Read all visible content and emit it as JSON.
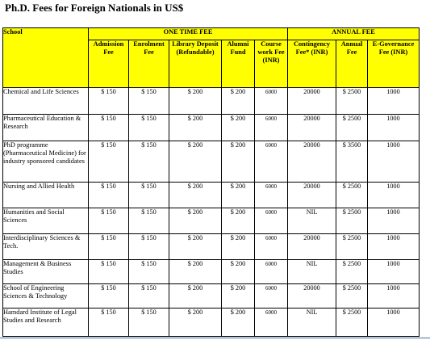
{
  "title": "Ph.D. Fees for Foreign Nationals in US$",
  "header": {
    "school": "School",
    "one_time_fee": "ONE TIME FEE",
    "annual_fee": "ANNUAL FEE",
    "columns": [
      "Admission Fee",
      "Enrolment Fee",
      "Library Deposit (Refundable)",
      "Alumni Fund",
      "Course work Fee (INR)",
      "Contingency Fee* (INR)",
      "Annual Fee",
      "E-Governance Fee (INR)"
    ]
  },
  "rows": [
    {
      "school": "Chemical and Life Sciences",
      "values": [
        "$ 150",
        "$ 150",
        "$ 200",
        "$ 200",
        "6000",
        "20000",
        "$ 2500",
        "1000"
      ]
    },
    {
      "school": "Pharmaceutical Education & Research",
      "values": [
        "$ 150",
        "$ 150",
        "$ 200",
        "$ 200",
        "6000",
        "20000",
        "$ 2500",
        "1000"
      ]
    },
    {
      "school": "PhD programme (Pharmaceutical Medicine) for industry sponsored candidates",
      "values": [
        "$ 150",
        "$ 150",
        "$ 200",
        "$ 200",
        "6000",
        "20000",
        "$ 3500",
        "1000"
      ]
    },
    {
      "school": "Nursing and Allied Health",
      "values": [
        "$ 150",
        "$ 150",
        "$ 200",
        "$ 200",
        "6000",
        "20000",
        "$ 2500",
        "1000"
      ]
    },
    {
      "school": "Humanities and Social Sciences",
      "values": [
        "$ 150",
        "$ 150",
        "$ 200",
        "$ 200",
        "6000",
        "NIL",
        "$ 2500",
        "1000"
      ]
    },
    {
      "school": "Interdisciplinary Sciences & Tech.",
      "values": [
        "$ 150",
        "$ 150",
        "$ 200",
        "$ 200",
        "6000",
        "20000",
        "$ 2500",
        "1000"
      ]
    },
    {
      "school": "Management & Business Studies",
      "values": [
        "$ 150",
        "$ 150",
        "$ 200",
        "$ 200",
        "6000",
        "NIL",
        "$ 2500",
        "1000"
      ]
    },
    {
      "school": "School of Engineering Sciences & Technology",
      "values": [
        "$ 150",
        "$ 150",
        "$ 200",
        "$ 200",
        "6000",
        "20000",
        "$ 2500",
        "1000"
      ]
    },
    {
      "school": "Hamdard Institute of Legal Studies and Research",
      "values": [
        "$ 150",
        "$ 150",
        "$ 200",
        "$ 200",
        "6000",
        "NIL",
        "$ 2500",
        "1000"
      ]
    }
  ],
  "colors": {
    "header_background": "#ffff00",
    "border": "#000000"
  }
}
